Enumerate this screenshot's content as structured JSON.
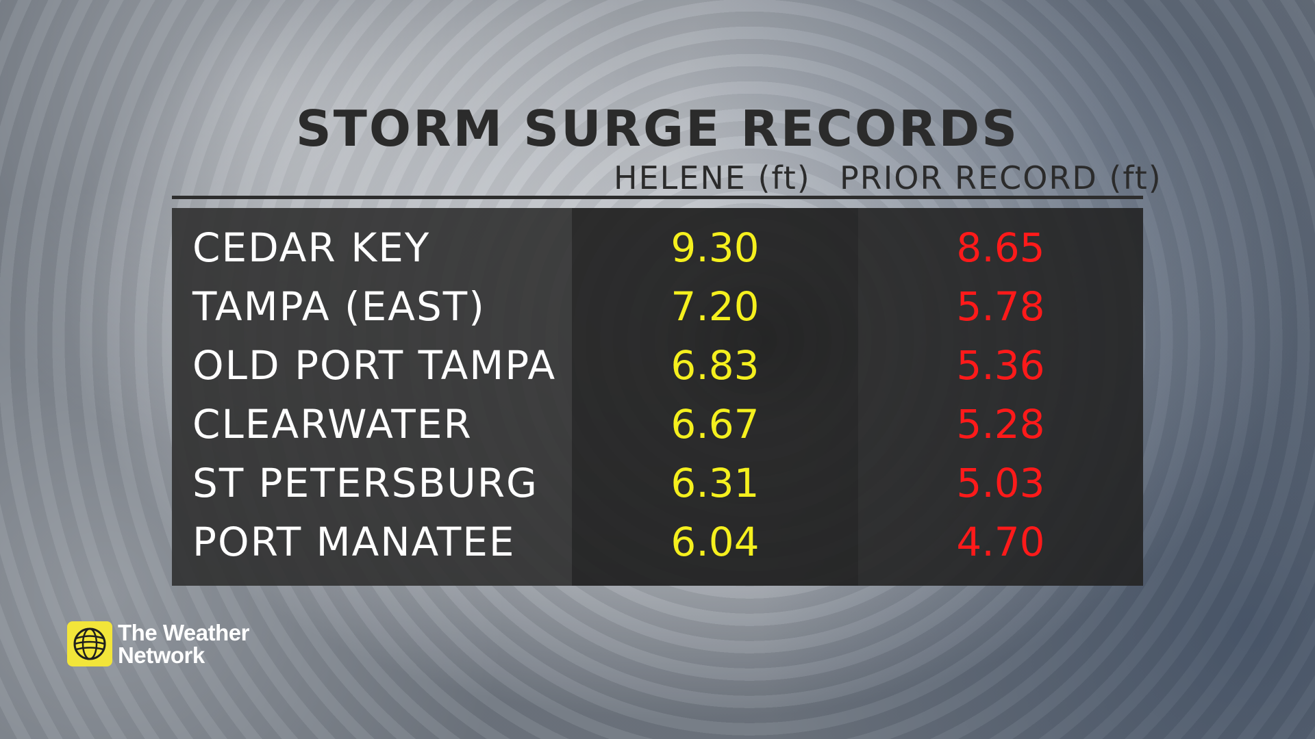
{
  "chart_data": {
    "type": "table",
    "title": "STORM SURGE RECORDS",
    "columns": [
      "HELENE (ft)",
      "PRIOR RECORD (ft)"
    ],
    "rows": [
      {
        "location": "CEDAR KEY",
        "helene": "9.30",
        "prior": "8.65"
      },
      {
        "location": "TAMPA (EAST)",
        "helene": "7.20",
        "prior": "5.78"
      },
      {
        "location": "OLD PORT TAMPA",
        "helene": "6.83",
        "prior": "5.36"
      },
      {
        "location": "CLEARWATER",
        "helene": "6.67",
        "prior": "5.28"
      },
      {
        "location": "ST PETERSBURG",
        "helene": "6.31",
        "prior": "5.03"
      },
      {
        "location": "PORT MANATEE",
        "helene": "6.04",
        "prior": "4.70"
      }
    ],
    "colors": {
      "helene": "#f5f01e",
      "prior": "#ff1a1a",
      "location": "#ffffff"
    }
  },
  "logo": {
    "line1": "The Weather",
    "line2": "Network",
    "icon": "weather-network-globe-icon"
  }
}
